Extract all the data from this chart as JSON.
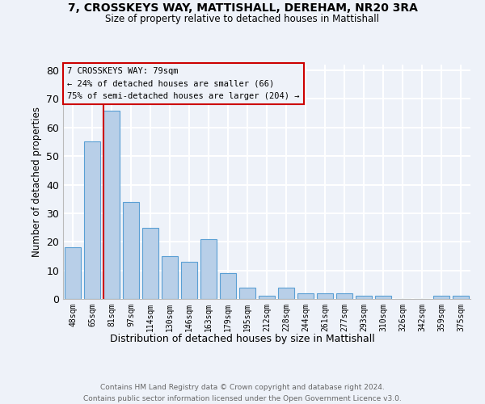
{
  "title1": "7, CROSSKEYS WAY, MATTISHALL, DEREHAM, NR20 3RA",
  "title2": "Size of property relative to detached houses in Mattishall",
  "xlabel": "Distribution of detached houses by size in Mattishall",
  "ylabel": "Number of detached properties",
  "categories": [
    "48sqm",
    "65sqm",
    "81sqm",
    "97sqm",
    "114sqm",
    "130sqm",
    "146sqm",
    "163sqm",
    "179sqm",
    "195sqm",
    "212sqm",
    "228sqm",
    "244sqm",
    "261sqm",
    "277sqm",
    "293sqm",
    "310sqm",
    "326sqm",
    "342sqm",
    "359sqm",
    "375sqm"
  ],
  "values": [
    18,
    55,
    66,
    34,
    25,
    15,
    13,
    21,
    9,
    4,
    1,
    4,
    2,
    2,
    2,
    1,
    1,
    0,
    0,
    1,
    1
  ],
  "bar_color": "#b8cfe8",
  "bar_edgecolor": "#5a9fd4",
  "highlight_index": 2,
  "highlight_color": "#cc0000",
  "ylim": [
    0,
    82
  ],
  "yticks": [
    0,
    10,
    20,
    30,
    40,
    50,
    60,
    70,
    80
  ],
  "annotation_text": "7 CROSSKEYS WAY: 79sqm\n← 24% of detached houses are smaller (66)\n75% of semi-detached houses are larger (204) →",
  "footer": "Contains HM Land Registry data © Crown copyright and database right 2024.\nContains public sector information licensed under the Open Government Licence v3.0.",
  "bg_color": "#eef2f9",
  "grid_color": "#ffffff"
}
